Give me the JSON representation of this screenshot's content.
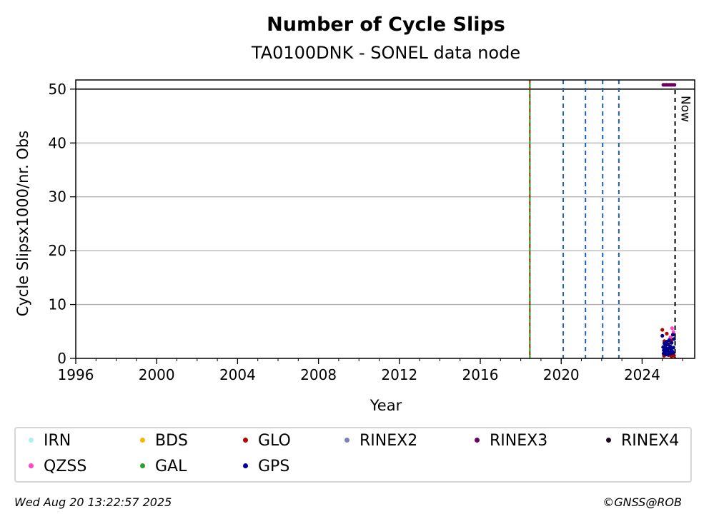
{
  "chart_data": {
    "type": "scatter",
    "title": "Number of Cycle Slips",
    "subtitle": "TA0100DNK - SONEL data node",
    "xlabel": "Year",
    "ylabel": "Cycle Slipsx1000/nr. Obs",
    "xlim": [
      1996,
      2026.6
    ],
    "ylim": [
      0,
      51.7
    ],
    "x_ticks": [
      1996,
      2000,
      2004,
      2008,
      2012,
      2016,
      2020,
      2024
    ],
    "y_ticks": [
      0,
      10,
      20,
      30,
      40,
      50
    ],
    "grid": "horizontal",
    "reference_line": {
      "y": 50,
      "color": "#000000"
    },
    "event_lines": [
      {
        "x": 2018.45,
        "style": "dashed",
        "colors": [
          "#2ca02c",
          "#cc0000"
        ]
      },
      {
        "x": 2020.1,
        "style": "dashed",
        "color": "#1f5fb0"
      },
      {
        "x": 2021.2,
        "style": "dashed",
        "color": "#1f5fb0"
      },
      {
        "x": 2022.05,
        "style": "dashed",
        "color": "#1f5fb0"
      },
      {
        "x": 2022.85,
        "style": "dashed",
        "color": "#1f5fb0"
      }
    ],
    "now_line": {
      "x": 2025.63,
      "label": "Now",
      "color": "#000000"
    },
    "series": [
      {
        "name": "RINEX3",
        "color": "#6a005f",
        "points": [
          [
            2025.05,
            50.8
          ],
          [
            2025.12,
            50.8
          ],
          [
            2025.2,
            50.8
          ],
          [
            2025.28,
            50.8
          ],
          [
            2025.36,
            50.8
          ],
          [
            2025.44,
            50.8
          ],
          [
            2025.52,
            50.8
          ],
          [
            2025.6,
            50.8
          ]
        ]
      },
      {
        "name": "GLO",
        "color": "#b30000",
        "points": [
          [
            2025.0,
            5.3
          ],
          [
            2025.08,
            0.5
          ],
          [
            2025.15,
            0.8
          ],
          [
            2025.22,
            4.6
          ],
          [
            2025.3,
            0.6
          ],
          [
            2025.38,
            1.0
          ],
          [
            2025.45,
            0.4
          ],
          [
            2025.52,
            0.9
          ],
          [
            2025.58,
            0.5
          ],
          [
            2025.1,
            3.2
          ],
          [
            2025.33,
            2.8
          ],
          [
            2025.48,
            3.5
          ]
        ]
      },
      {
        "name": "QZSS",
        "color": "#ff44cc",
        "points": [
          [
            2025.48,
            5.6
          ],
          [
            2025.55,
            4.9
          ],
          [
            2025.4,
            3.9
          ],
          [
            2025.25,
            2.9
          ]
        ]
      },
      {
        "name": "GPS",
        "color": "#00008b",
        "points": [
          [
            2025.0,
            4.2
          ],
          [
            2025.04,
            2.1
          ],
          [
            2025.07,
            1.5
          ],
          [
            2025.1,
            2.8
          ],
          [
            2025.13,
            1.2
          ],
          [
            2025.16,
            2.4
          ],
          [
            2025.19,
            1.8
          ],
          [
            2025.22,
            3.1
          ],
          [
            2025.25,
            1.4
          ],
          [
            2025.28,
            2.6
          ],
          [
            2025.31,
            1.9
          ],
          [
            2025.34,
            3.4
          ],
          [
            2025.37,
            1.1
          ],
          [
            2025.4,
            2.2
          ],
          [
            2025.43,
            1.6
          ],
          [
            2025.46,
            2.9
          ],
          [
            2025.49,
            1.3
          ],
          [
            2025.52,
            4.4
          ],
          [
            2025.55,
            2.0
          ],
          [
            2025.58,
            3.6
          ],
          [
            2025.06,
            0.9
          ],
          [
            2025.18,
            0.7
          ],
          [
            2025.3,
            0.8
          ],
          [
            2025.42,
            0.9
          ],
          [
            2025.54,
            1.0
          ]
        ]
      }
    ],
    "legend": [
      {
        "name": "IRN",
        "color": "#aaf0f0"
      },
      {
        "name": "BDS",
        "color": "#f5b800"
      },
      {
        "name": "GLO",
        "color": "#b30000"
      },
      {
        "name": "RINEX2",
        "color": "#7f7fbf"
      },
      {
        "name": "RINEX3",
        "color": "#6a005f"
      },
      {
        "name": "RINEX4",
        "color": "#1a0a1a"
      },
      {
        "name": "QZSS",
        "color": "#ff44cc"
      },
      {
        "name": "GAL",
        "color": "#2ca02c"
      },
      {
        "name": "GPS",
        "color": "#00008b"
      }
    ],
    "legend_position": "below"
  },
  "footer": {
    "timestamp": "Wed Aug 20 13:22:57 2025",
    "credit": "©GNSS@ROB"
  }
}
